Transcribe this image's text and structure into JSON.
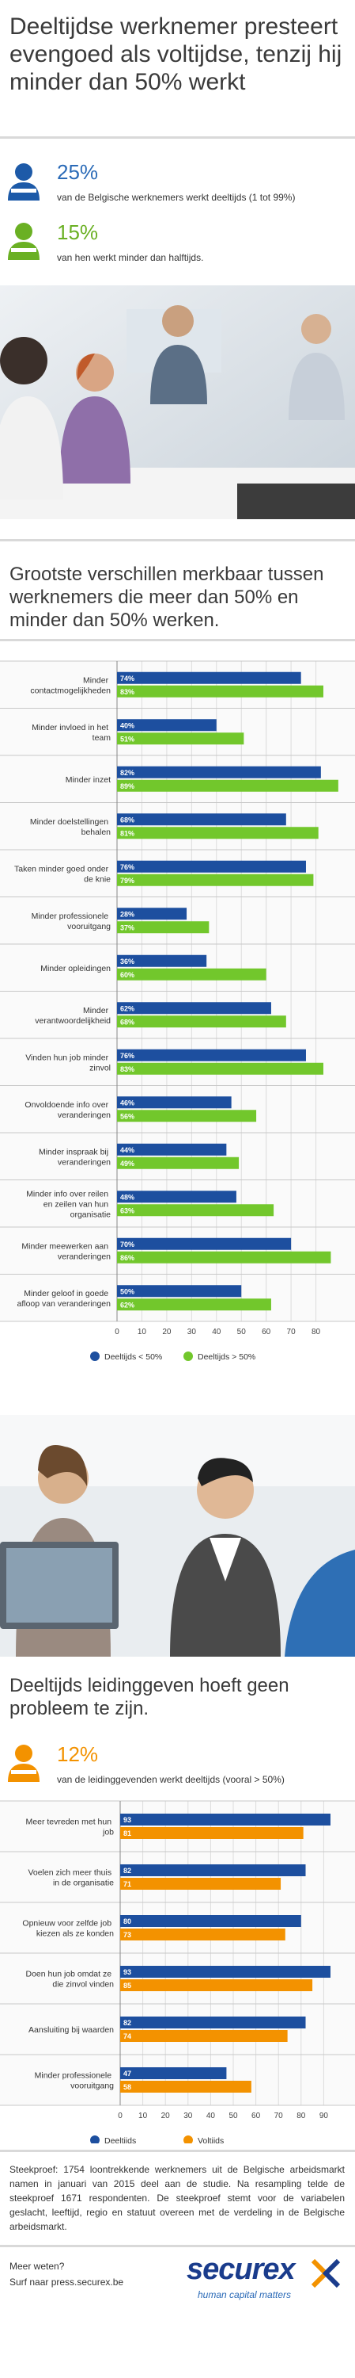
{
  "header": {
    "title": "Deeltijdse werknemer presteert evengoed als voltijdse, tenzij hij minder dan 50% werkt"
  },
  "stats": [
    {
      "value": "25%",
      "text": "van de Belgische werknemers werkt deeltijds (1 tot 99%)"
    },
    {
      "value": "15%",
      "text": "van hen werkt minder dan halftijds."
    },
    {
      "value": "12%",
      "text": "van de leidinggevenden werkt deeltijds (vooral > 50%)"
    }
  ],
  "sections": [
    {
      "heading": "Grootste verschillen merkbaar tussen werknemers die meer dan 50% en minder dan 50% werken."
    },
    {
      "heading": "Deeltijds leidinggeven hoeft geen probleem te zijn."
    }
  ],
  "chart_data": [
    {
      "type": "bar",
      "orientation": "horizontal",
      "categories": [
        "Minder contactmogelijkheden",
        "Minder invloed in het team",
        "Minder inzet",
        "Minder doelstellingen behalen",
        "Taken minder goed onder de knie",
        "Minder professionele vooruitgang",
        "Minder opleidingen",
        "Minder verantwoordelijkheid",
        "Vinden hun job minder zinvol",
        "Onvoldoende info over veranderingen",
        "Minder inspraak bij veranderingen",
        "Minder info over reilen en zeilen van hun organisatie",
        "Minder meewerken aan veranderingen",
        "Minder geloof in goede afloop van veranderingen"
      ],
      "series": [
        {
          "name": "Deeltijds < 50%",
          "color": "#1d4f9f",
          "values": [
            74,
            40,
            82,
            68,
            76,
            28,
            36,
            62,
            76,
            46,
            44,
            48,
            70,
            50
          ],
          "value_labels": [
            "74%",
            "40%",
            "82%",
            "68%",
            "76%",
            "28%",
            "36%",
            "62%",
            "76%",
            "46%",
            "44%",
            "48%",
            "70%",
            "50%"
          ]
        },
        {
          "name": "Deeltijds > 50%",
          "color": "#72c72c",
          "values": [
            83,
            51,
            89,
            81,
            79,
            37,
            60,
            68,
            83,
            56,
            49,
            63,
            86,
            62
          ],
          "value_labels": [
            "83%",
            "51%",
            "89%",
            "81%",
            "79%",
            "37%",
            "60%",
            "68%",
            "83%",
            "56%",
            "49%",
            "63%",
            "86%",
            "62%"
          ]
        }
      ],
      "xlim": [
        0,
        90
      ],
      "xticks": [
        0,
        10,
        20,
        30,
        40,
        50,
        60,
        70,
        80
      ],
      "grid": true
    },
    {
      "type": "bar",
      "orientation": "horizontal",
      "categories": [
        "Meer tevreden met hun job",
        "Voelen zich meer thuis in de organisatie",
        "Opnieuw voor zelfde job kiezen als ze konden",
        "Doen hun job omdat ze die zinvol vinden",
        "Aansluiting bij waarden",
        "Minder professionele vooruitgang"
      ],
      "series": [
        {
          "name": "Deeltijds",
          "color": "#1d4f9f",
          "values": [
            93,
            82,
            80,
            93,
            82,
            47
          ]
        },
        {
          "name": "Voltijds",
          "color": "#f39200",
          "values": [
            81,
            71,
            73,
            85,
            74,
            58
          ]
        }
      ],
      "xlim": [
        0,
        100
      ],
      "xticks": [
        0,
        10,
        20,
        30,
        40,
        50,
        60,
        70,
        80,
        90
      ],
      "grid": true
    }
  ],
  "footer": {
    "note": "Steekproef: 1754 loontrekkende werknemers uit de Belgische arbeidsmarkt namen in januari van 2015 deel aan de studie. Na resampling telde de steekproef 1671 respondenten. De steekproef stemt voor de variabelen geslacht, leeftijd, regio en statuut overeen met de verdeling in de Belgische arbeidsmarkt.",
    "more": "Meer weten?",
    "link": "Surf naar press.securex.be",
    "logo": "securex",
    "tagline": "human capital matters"
  }
}
